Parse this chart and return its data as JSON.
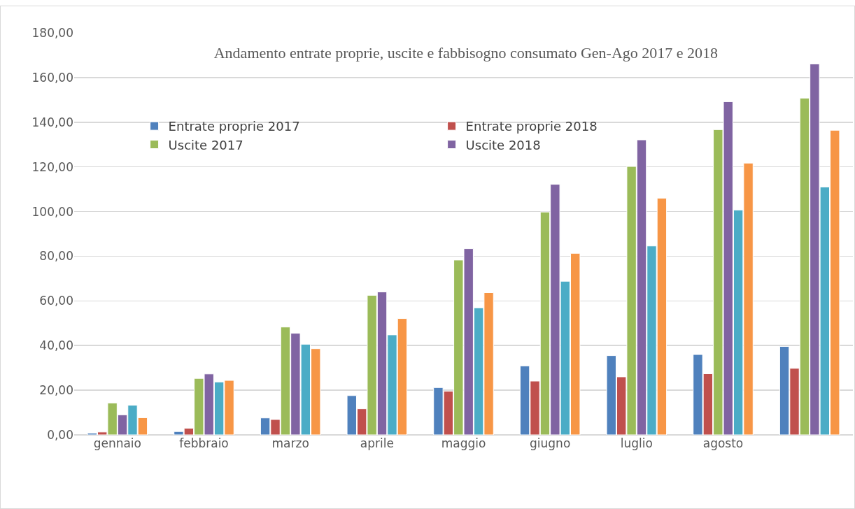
{
  "chart_data": {
    "type": "bar",
    "title": "Andamento entrate proprie, uscite e fabbisogno consumato Gen-Ago 2017 e 2018",
    "categories": [
      "gennaio",
      "febbraio",
      "marzo",
      "aprile",
      "maggio",
      "giugno",
      "luglio",
      "agosto",
      null
    ],
    "series": [
      {
        "name": "Entrate proprie 2017",
        "color": "#4f81bd",
        "values": [
          0.8,
          1.5,
          7.6,
          17.6,
          21.2,
          30.9,
          35.5,
          36.0,
          39.6
        ]
      },
      {
        "name": "Entrate proprie 2018",
        "color": "#c0504d",
        "values": [
          1.3,
          3.0,
          6.9,
          11.7,
          19.6,
          24.1,
          26.0,
          27.4,
          29.8
        ]
      },
      {
        "name": "Uscite 2017",
        "color": "#9bbb59",
        "values": [
          14.3,
          25.3,
          48.3,
          62.5,
          78.3,
          99.8,
          120.2,
          136.7,
          150.8
        ]
      },
      {
        "name": "Uscite 2018",
        "color": "#8064a2",
        "values": [
          9.0,
          27.3,
          45.5,
          64.0,
          83.4,
          112.2,
          132.1,
          149.2,
          166.1
        ]
      },
      {
        "color": "#4bacc6",
        "values": [
          13.3,
          23.7,
          40.6,
          44.8,
          56.9,
          68.8,
          84.6,
          100.7,
          111.0
        ]
      },
      {
        "color": "#f79646",
        "values": [
          7.7,
          24.4,
          38.6,
          52.1,
          63.7,
          81.3,
          106.0,
          121.7,
          136.4
        ]
      }
    ],
    "ylim": [
      0,
      180
    ],
    "yticks": [
      {
        "value": 0,
        "label": "0,00"
      },
      {
        "value": 20,
        "label": "20,00"
      },
      {
        "value": 40,
        "label": "40,00"
      },
      {
        "value": 60,
        "label": "60,00"
      },
      {
        "value": 80,
        "label": "80,00"
      },
      {
        "value": 100,
        "label": "100,00"
      },
      {
        "value": 120,
        "label": "120,00"
      },
      {
        "value": 140,
        "label": "140,00"
      },
      {
        "value": 160,
        "label": "160,00"
      },
      {
        "value": 180,
        "label": "180,00"
      }
    ],
    "grid": "y",
    "legend": "top left"
  }
}
